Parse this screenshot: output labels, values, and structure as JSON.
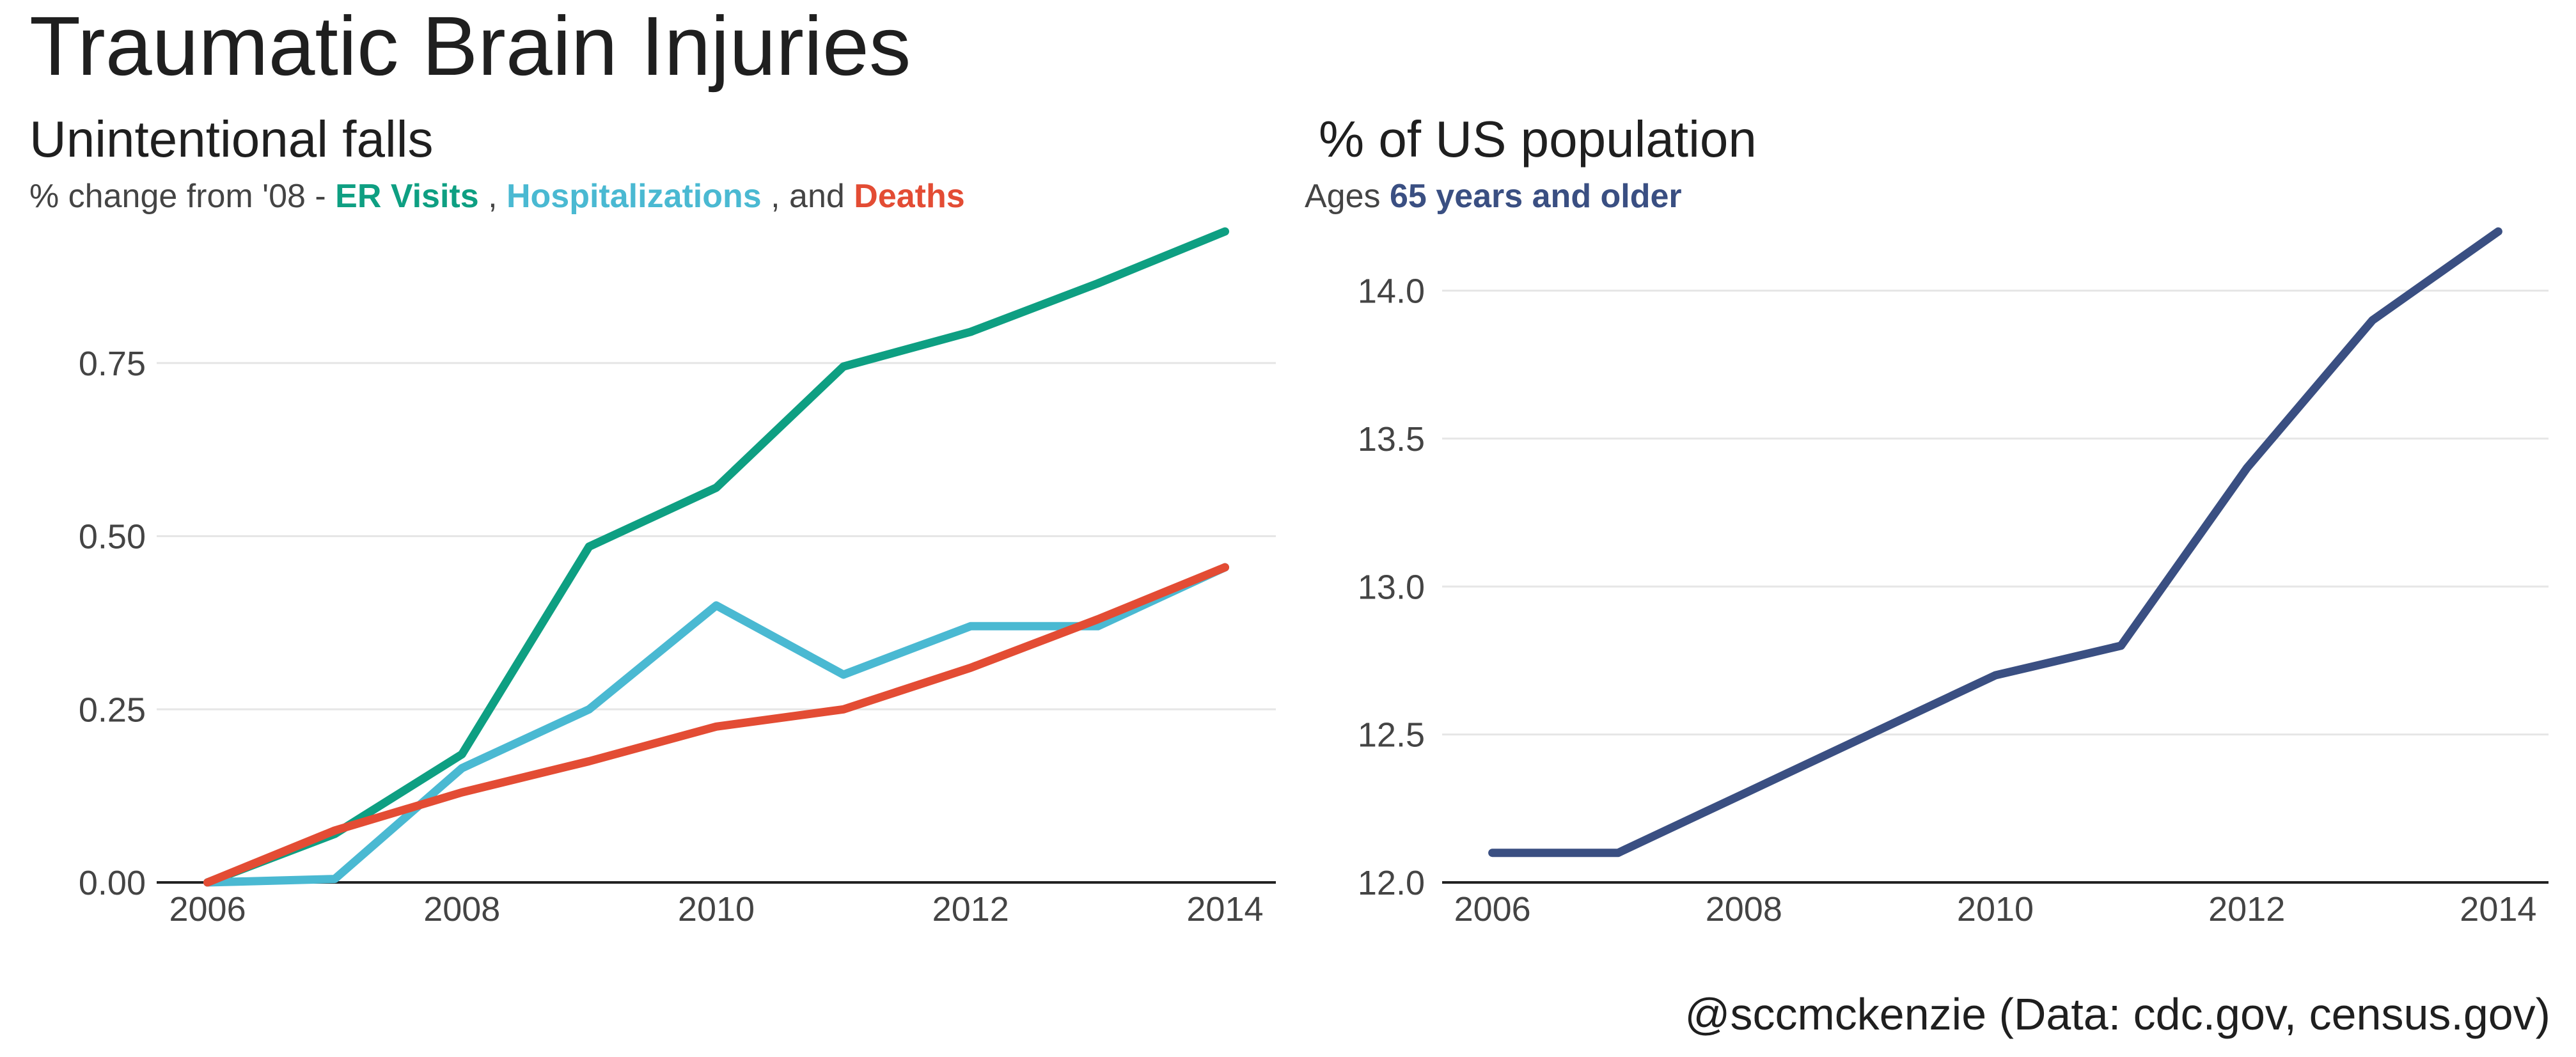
{
  "title": "Traumatic Brain Injuries",
  "caption": "@sccmckenzie (Data: cdc.gov, census.gov)",
  "colors": {
    "er_visits": "#0e9f82",
    "hospitalizations": "#4ab9d2",
    "deaths": "#e34c34",
    "population": "#3a4f82"
  },
  "left_panel": {
    "title": "Unintentional falls",
    "subtitle_prefix": "% change from '08 - ",
    "subtitle_er": "ER Visits",
    "subtitle_sep1": " , ",
    "subtitle_hosp": "Hospitalizations",
    "subtitle_sep2": " , and ",
    "subtitle_deaths": "Deaths"
  },
  "right_panel": {
    "title": "% of US population",
    "subtitle_prefix": "Ages ",
    "subtitle_highlight": "65 years and older"
  },
  "chart_data": [
    {
      "type": "line",
      "title": "Unintentional falls",
      "subtitle": "% change from '08 - ER Visits , Hospitalizations , and Deaths",
      "x": [
        2006,
        2007,
        2008,
        2009,
        2010,
        2011,
        2012,
        2013,
        2014
      ],
      "series": [
        {
          "name": "ER Visits",
          "color": "#0e9f82",
          "values": [
            0.0,
            0.07,
            0.185,
            0.485,
            0.57,
            0.745,
            0.795,
            0.865,
            0.94
          ]
        },
        {
          "name": "Hospitalizations",
          "color": "#4ab9d2",
          "values": [
            0.0,
            0.005,
            0.165,
            0.25,
            0.4,
            0.3,
            0.37,
            0.37,
            0.455
          ]
        },
        {
          "name": "Deaths",
          "color": "#e34c34",
          "values": [
            0.0,
            0.075,
            0.13,
            0.175,
            0.225,
            0.25,
            0.31,
            0.38,
            0.455
          ]
        }
      ],
      "xlim": [
        2005.6,
        2014.4
      ],
      "ylim": [
        0,
        0.94
      ],
      "xticks": [
        2006,
        2008,
        2010,
        2012,
        2014
      ],
      "yticks": [
        0,
        0.25,
        0.5,
        0.75
      ],
      "ytick_labels": [
        "0.00",
        "0.25",
        "0.50",
        "0.75"
      ],
      "grid": "horizontal"
    },
    {
      "type": "line",
      "title": "% of US population",
      "subtitle": "Ages 65 years and older",
      "x": [
        2006,
        2007,
        2008,
        2009,
        2010,
        2011,
        2012,
        2013,
        2014
      ],
      "series": [
        {
          "name": "65 years and older",
          "color": "#3a4f82",
          "values": [
            12.1,
            12.1,
            12.3,
            12.5,
            12.7,
            12.8,
            13.4,
            13.9,
            14.2
          ]
        }
      ],
      "xlim": [
        2005.6,
        2014.4
      ],
      "ylim": [
        12.0,
        14.2
      ],
      "xticks": [
        2006,
        2008,
        2010,
        2012,
        2014
      ],
      "yticks": [
        12.0,
        12.5,
        13.0,
        13.5,
        14.0
      ],
      "ytick_labels": [
        "12.0",
        "12.5",
        "13.0",
        "13.5",
        "14.0"
      ],
      "grid": "horizontal"
    }
  ]
}
